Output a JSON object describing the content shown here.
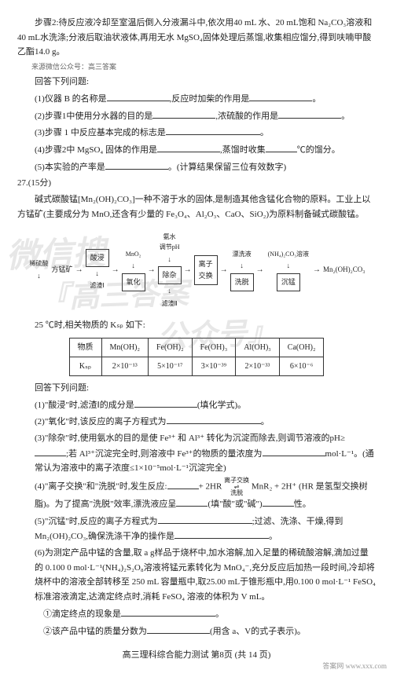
{
  "step2": "步骤2:待反应液冷却至室温后倒入分液漏斗中,依次用40 mL 水、20 mL饱和 Na₂CO₃溶液和40 mL水洗涤;分液后取油状液体,再用无水 MgSO₄固体处理后蒸馏,收集相应馏分,得到呋喃甲酸乙酯14.0 g。",
  "sourceNote": "来源微信公众号：高三答案",
  "answerHeader": "回答下列问题:",
  "q1": "(1)仪器 B 的名称是",
  "q1b": ",反应时加柴的作用是",
  "q2": "(2)步骤1中使用分水器的目的是",
  "q2b": ",浓硫酸的作用是",
  "q3": "(3)步骤 1 中反应基本完成的标志是",
  "q4a": "(4)步骤2中 MgSO₄ 固体的作用是",
  "q4b": ",蒸馏时收集",
  "q4c": "℃的馏分。",
  "q5": "(5)本实验的产率是",
  "q5b": "。(计算结果保留三位有效数字)",
  "q27": "27.(15分)",
  "q27intro1": "碱式碳酸锰[Mn₂(OH)₂CO₃]一种不溶于水的固体,是制造其他含锰化合物的原料。工业上以方锰矿(主要成分为 MnO,还含有少量的 Fe₃O₄、Al₂O₃、CaO、SiO₂)为原料制备碱式碳酸锰。",
  "flow": {
    "inputs_top": [
      "稀硫酸",
      "MnO₂",
      "氨水\n调节pH",
      "",
      "漂洗液",
      "(NH₄)₂CO₃溶液"
    ],
    "boxes": [
      "酸浸",
      "氧化",
      "除杂",
      "离子\n交换",
      "洗脱",
      "沉锰"
    ],
    "start": "方锰矿",
    "end": "Mn₂(OH)₂CO₃",
    "bottom": [
      "滤渣Ⅰ",
      "",
      "滤渣Ⅱ",
      "",
      "",
      ""
    ]
  },
  "tempNote": "25 ℃时,相关物质的 Kₛₚ 如下:",
  "table": {
    "headers": [
      "物质",
      "Mn(OH)₂",
      "Fe(OH)₂",
      "Fe(OH)₃",
      "Al(OH)₃",
      "Ca(OH)₂"
    ],
    "row1": [
      "Kₛₚ",
      "2×10⁻¹³",
      "5×10⁻¹⁷",
      "3×10⁻³⁹",
      "2×10⁻³³",
      "6×10⁻⁶"
    ]
  },
  "answerHeader2": "回答下列问题:",
  "p1": "(1)\"酸浸\"时,滤渣Ⅰ的成分是",
  "p1b": "(填化学式)。",
  "p2": "(2)\"氧化\"时,该反应的离子方程式为",
  "p3a": "(3)\"除杂\"时,使用氨水的目的是使 Fe³⁺ 和 Al³⁺ 转化为沉淀而除去,则调节溶液的pH≥",
  "p3b": ";若 Al³⁺沉淀完全时,则溶液中 Fe³⁺的物质的量浓度为",
  "p3c": "mol·L⁻¹。(通常认为溶液中的离子浓度≤1×10⁻⁵mol·L⁻¹沉淀完全)",
  "p4a": "(4)\"离子交换\"和\"洗脱\"时,发生反应:",
  "p4formula": "+ 2HR",
  "p4arrow_top": "离子交换",
  "p4arrow_bot": "洗脱",
  "p4b": "MnR₂ + 2H⁺ (HR 是氢型交换树脂)。为了提高\"洗脱\"效率,漂洗液应呈",
  "p4c": "(填\"酸\"或\"碱\")",
  "p4d": "性。",
  "p5a": "(5)\"沉锰\"时,反应的离子方程式为",
  "p5b": ";过滤、洗涤、干燥,得到 Mn₂(OH)₂CO₃,确保洗涤干净的操作是",
  "p6a": "(6)为测定产品中锰的含量,取 a g样品于烧杯中,加水溶解,加入足量的稀硫酸溶解,滴加过量的 0.100 0 mol·L⁻¹(NH₄)₂S₂O₈溶液将锰元素转化为 MnO₄⁻,充分反应后加热一段时间,冷却将烧杯中的溶液全部转移至 250 mL 容量瓶中,取25.00 mL于锥形瓶中,用0.100 0 mol·L⁻¹ FeSO₄ 标准溶液滴定,达滴定终点时,消耗 FeSO₄ 溶液的体积为 V mL。",
  "p6_1": "①滴定终点的现象是",
  "p6_2a": "②该产品中锰的质量分数为",
  "p6_2b": "(用含 a、V的式子表示)。",
  "footer": "高三理科综合能力测试  第8页 (共 14 页)",
  "watermarks": [
    "微信搜",
    "『高三答案",
    "公众号』"
  ],
  "corner": "答案网 www.xxx.com",
  "colors": {
    "text": "#222",
    "border": "#333",
    "bg": "#fff",
    "wm": "rgba(120,120,120,0.18)"
  }
}
